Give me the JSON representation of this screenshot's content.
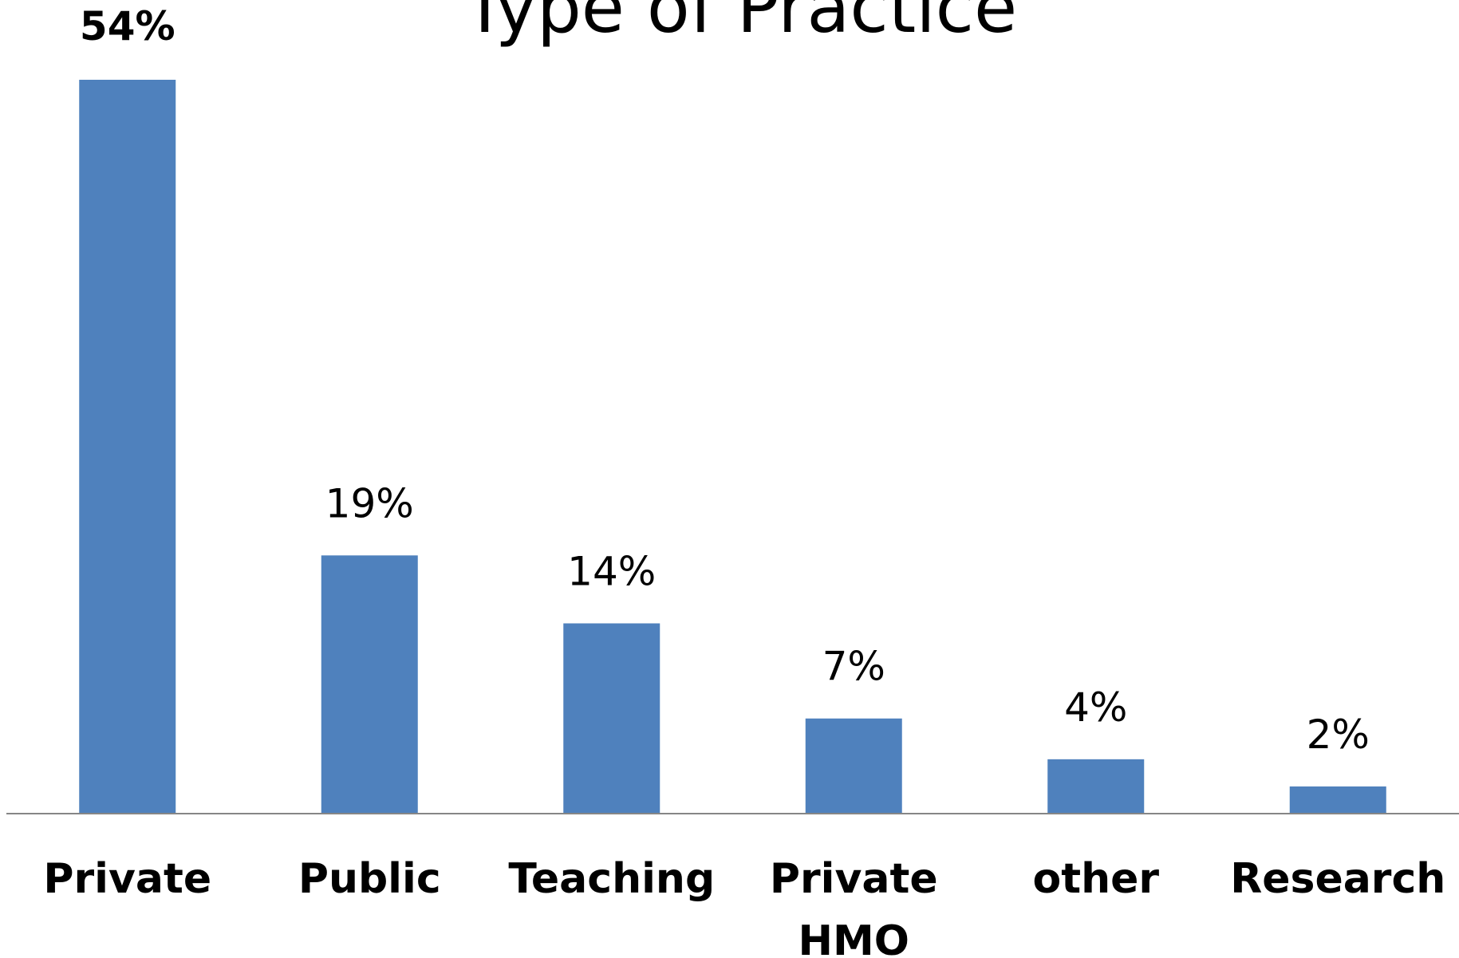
{
  "chart_data": {
    "type": "bar",
    "title": "Type of Practice",
    "xlabel": "",
    "ylabel": "",
    "categories": [
      "Private",
      "Public",
      "Teaching",
      "Private HMO",
      "other",
      "Research"
    ],
    "category_lines": [
      [
        "Private"
      ],
      [
        "Public"
      ],
      [
        "Teaching"
      ],
      [
        "Private",
        "HMO"
      ],
      [
        "other"
      ],
      [
        "Research"
      ]
    ],
    "values": [
      54,
      19,
      14,
      7,
      4,
      2
    ],
    "data_labels": [
      "54%",
      "19%",
      "14%",
      "7%",
      "4%",
      "2%"
    ],
    "ylim": [
      0,
      54
    ],
    "grid": false,
    "legend": "none",
    "bar_color": "#4F81BD",
    "axis_color": "#868686"
  }
}
